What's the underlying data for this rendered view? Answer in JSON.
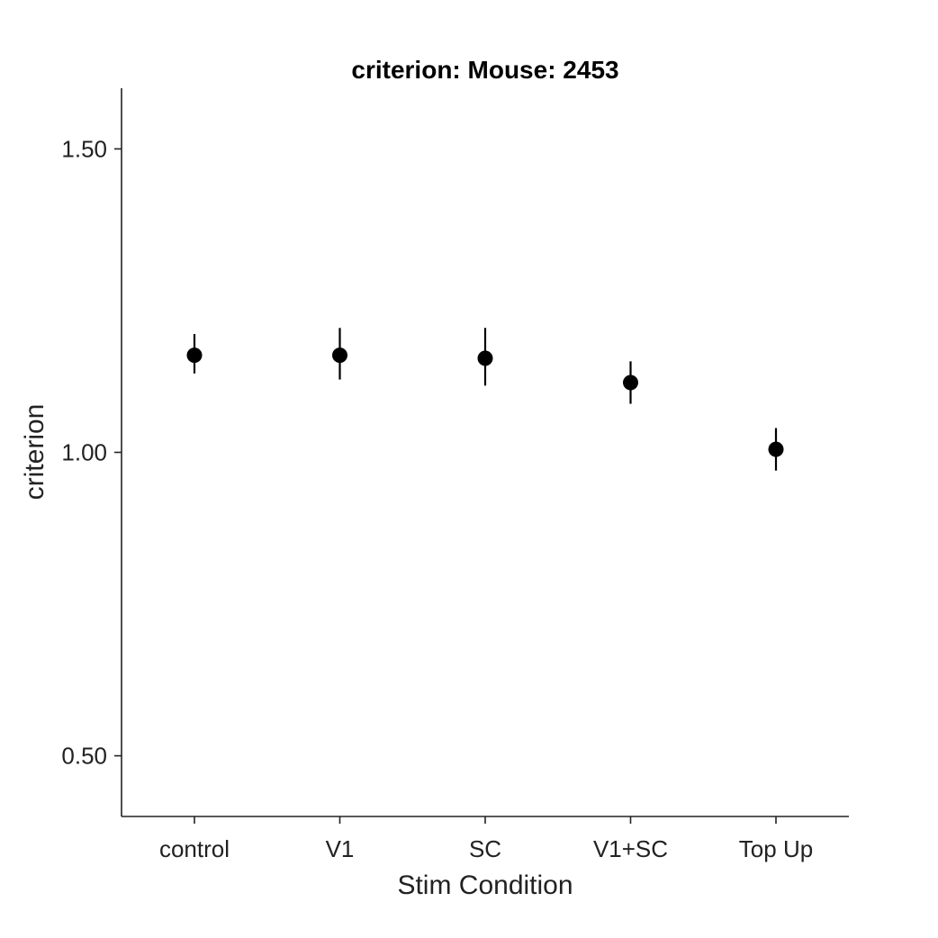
{
  "chart_data": {
    "type": "scatter",
    "title": "criterion: Mouse: 2453",
    "xlabel": "Stim Condition",
    "ylabel": "criterion",
    "categories": [
      "control",
      "V1",
      "SC",
      "V1+SC",
      "Top Up"
    ],
    "series": [
      {
        "values": [
          1.16,
          1.16,
          1.155,
          1.115,
          1.005
        ],
        "err_low": [
          1.13,
          1.12,
          1.11,
          1.08,
          0.97
        ],
        "err_high": [
          1.195,
          1.205,
          1.205,
          1.15,
          1.04
        ]
      }
    ],
    "ylim": [
      0.4,
      1.6
    ],
    "yticks": [
      0.5,
      1.0,
      1.5
    ],
    "ytick_labels": [
      "0.50",
      "1.00",
      "1.50"
    ],
    "grid": false,
    "legend": "none",
    "colors": {
      "marker": "#000000",
      "axis": "#222222"
    }
  }
}
